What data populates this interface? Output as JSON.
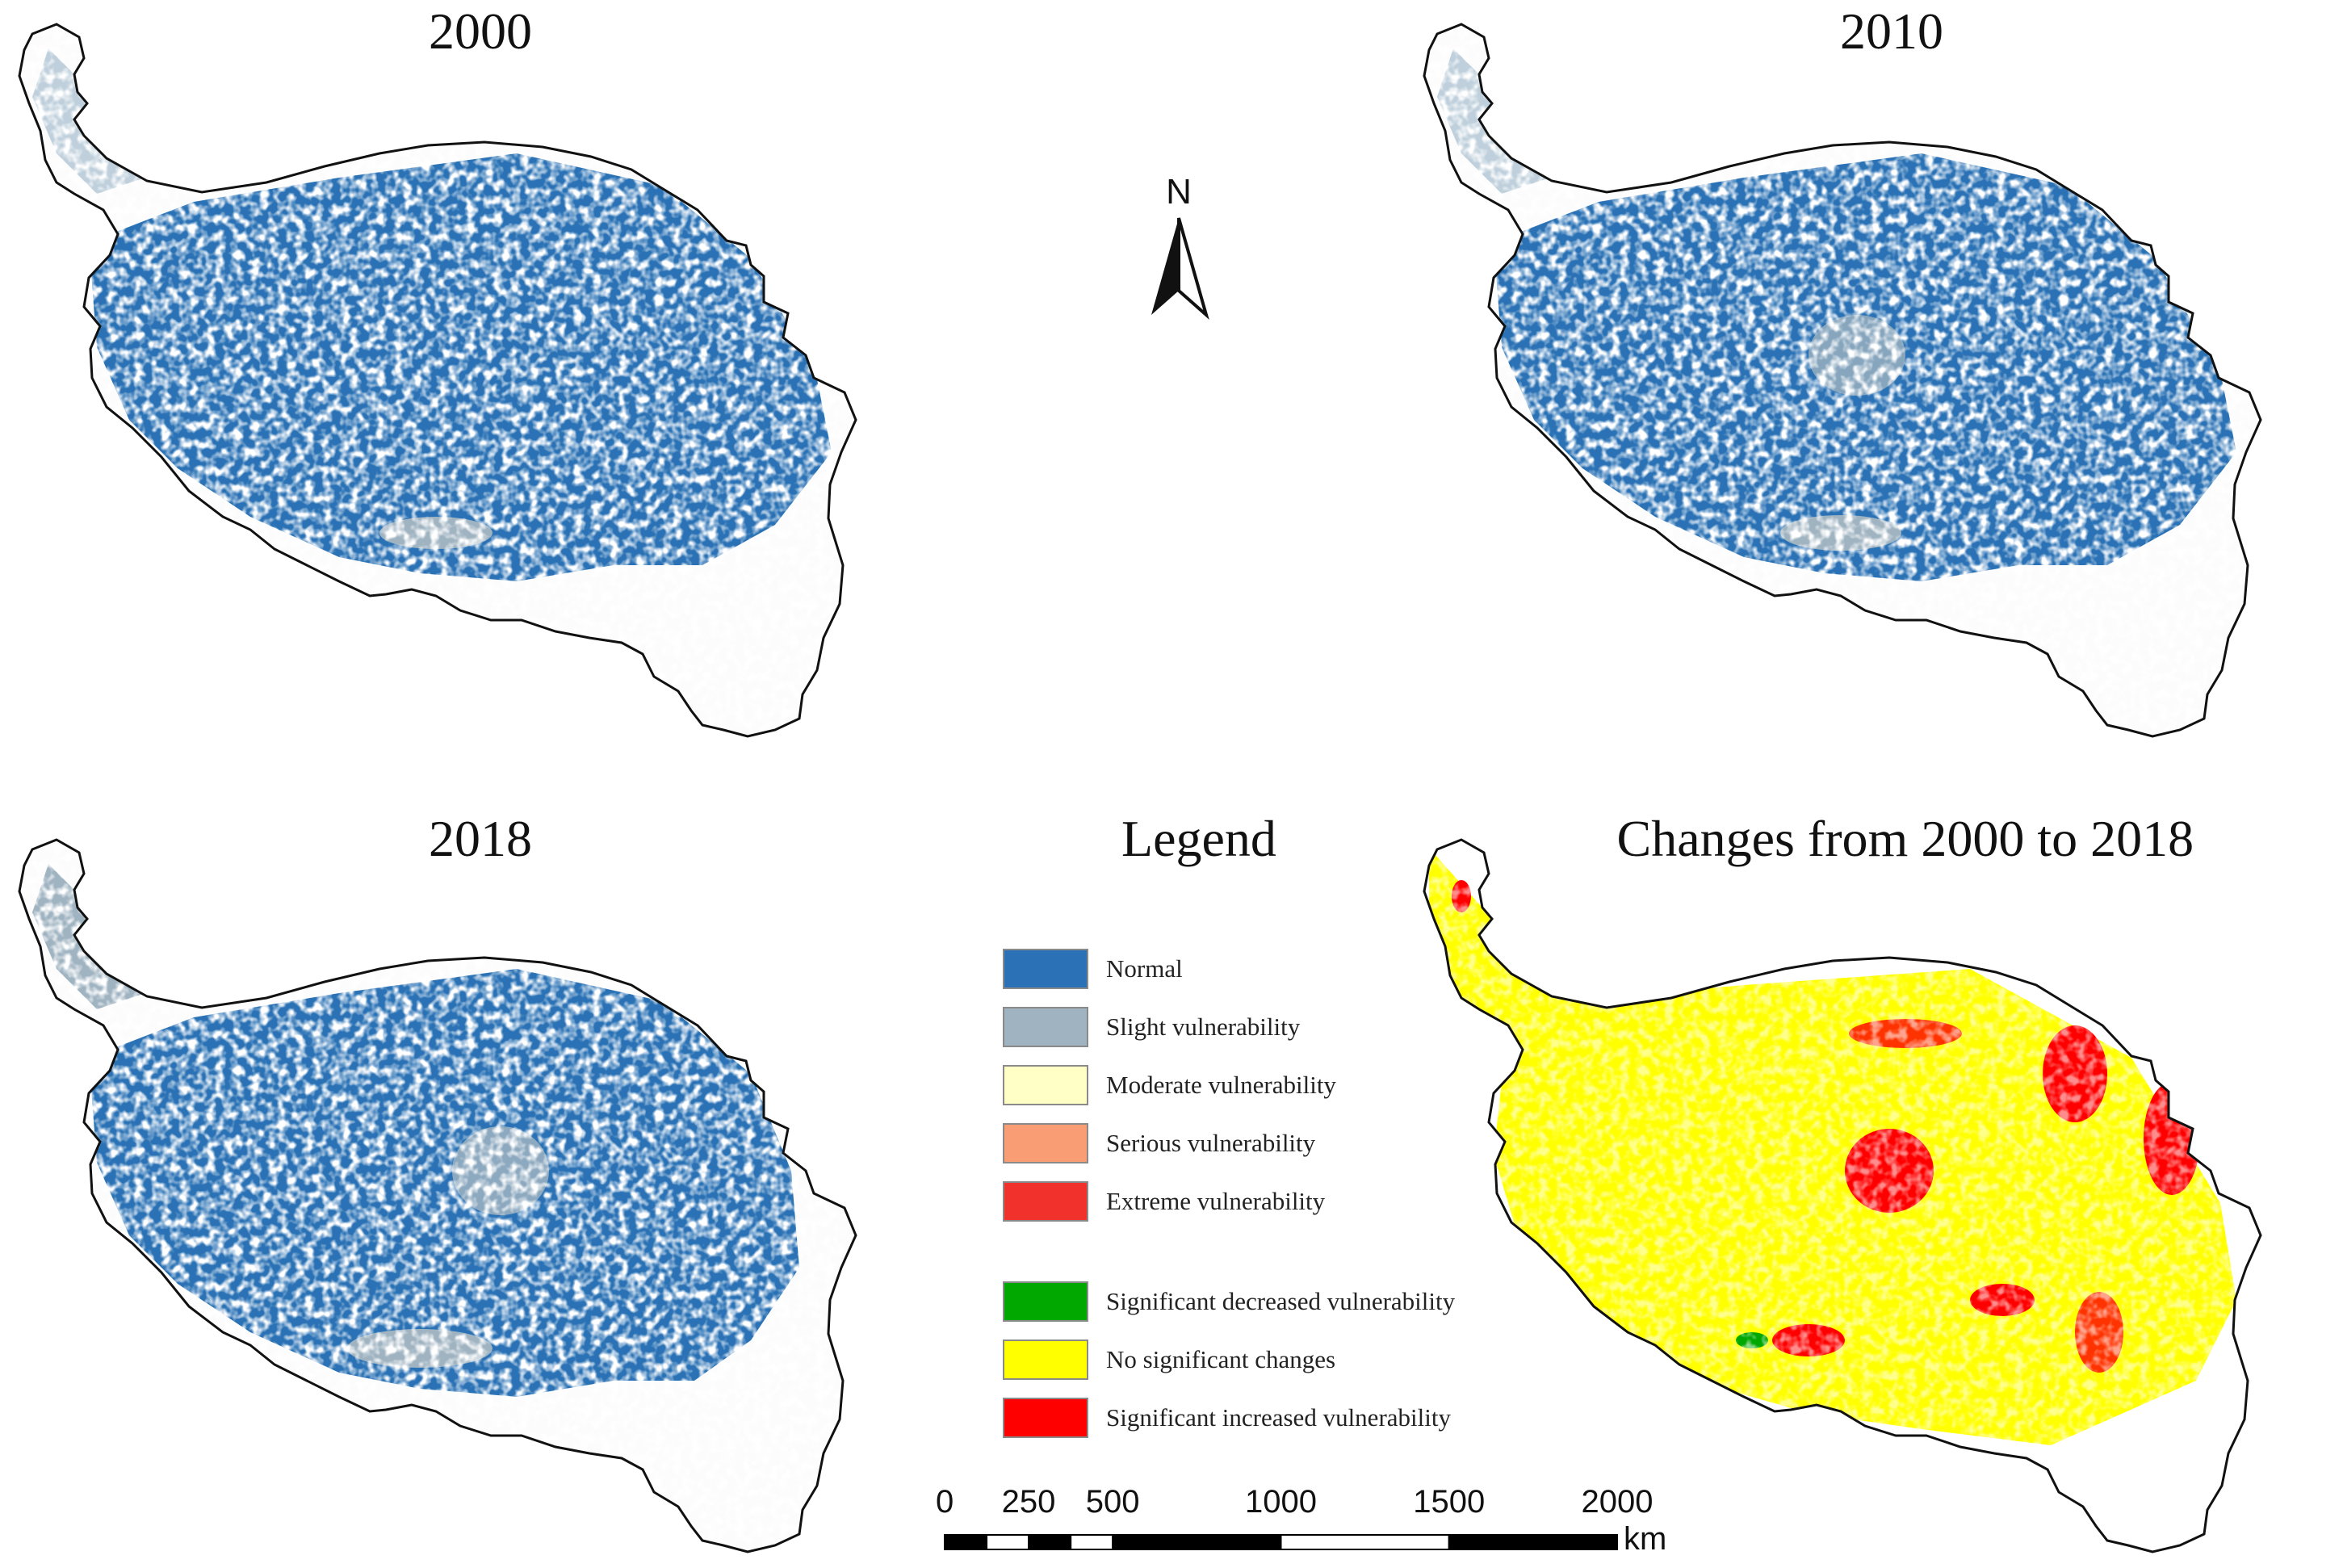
{
  "panels": [
    {
      "title": "2000",
      "variant": "blue"
    },
    {
      "title": "2010",
      "variant": "blue"
    },
    {
      "title": "2018",
      "variant": "blue"
    },
    {
      "title": "Changes from 2000 to 2018",
      "variant": "change"
    }
  ],
  "north_arrow": {
    "label": "N"
  },
  "legend": {
    "title": "Legend",
    "vulnerability_classes": [
      {
        "label": "Normal",
        "color": "#2a72b5"
      },
      {
        "label": "Slight vulnerability",
        "color": "#9fb3c1"
      },
      {
        "label": "Moderate vulnerability",
        "color": "#ffffc6"
      },
      {
        "label": "Serious vulnerability",
        "color": "#f99d75"
      },
      {
        "label": "Extreme vulnerability",
        "color": "#f1312b"
      }
    ],
    "change_classes": [
      {
        "label": "Significant decreased vulnerability",
        "color": "#00a800"
      },
      {
        "label": "No significant changes",
        "color": "#ffff00"
      },
      {
        "label": "Significant increased vulnerability",
        "color": "#ff0000"
      }
    ]
  },
  "scale_bar": {
    "ticks": [
      "0",
      "250",
      "500",
      "1000",
      "1500",
      "2000"
    ],
    "tick_km": [
      0,
      250,
      500,
      1000,
      1500,
      2000
    ],
    "unit": "km"
  }
}
